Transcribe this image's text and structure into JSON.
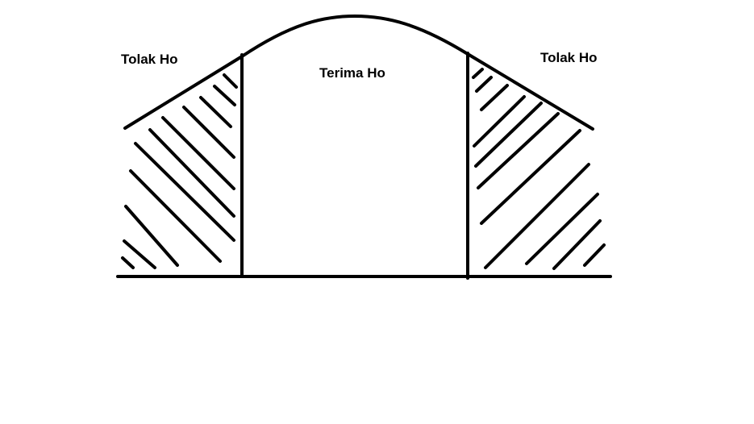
{
  "diagram": {
    "labels": {
      "left_region": "Tolak Ho",
      "center_region": "Terima Ho",
      "right_region": "Tolak Ho"
    },
    "colors": {
      "stroke": "#000000",
      "background": "#ffffff"
    }
  }
}
